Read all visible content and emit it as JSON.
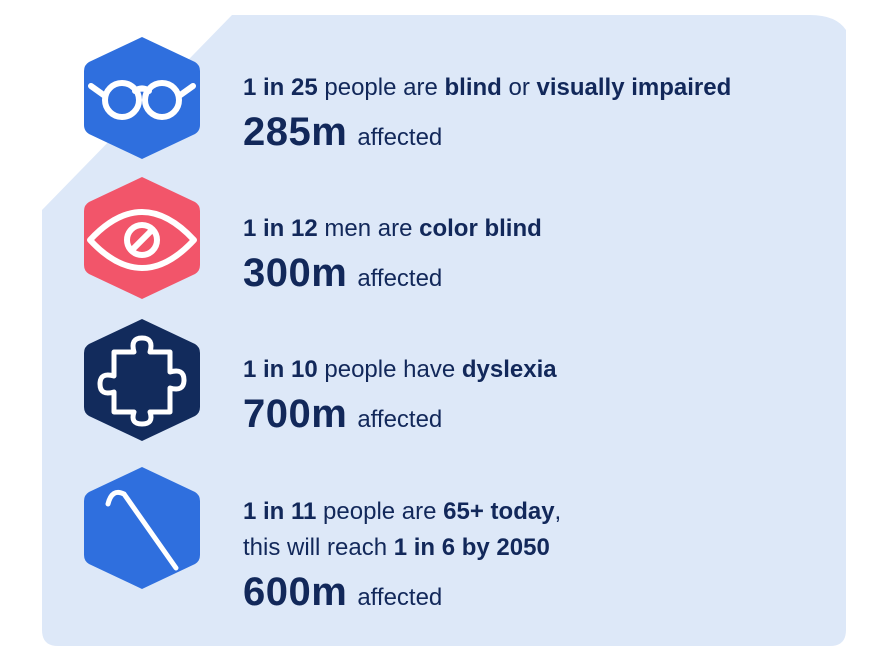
{
  "colors": {
    "background": "#dde8f8",
    "text": "#12285a",
    "blue": "#2f6fde",
    "red": "#f2556a",
    "navy": "#122b5c",
    "icon_stroke": "#ffffff"
  },
  "stats": [
    {
      "icon": "glasses-icon",
      "line1": [
        {
          "t": "1 in 25",
          "b": true
        },
        {
          "t": " people are ",
          "b": false
        },
        {
          "t": "blind",
          "b": true
        },
        {
          "t": " or ",
          "b": false
        },
        {
          "t": "visually impaired",
          "b": true
        }
      ],
      "line2": [],
      "number": "285m",
      "affected": "affected"
    },
    {
      "icon": "eye-blocked-icon",
      "line1": [
        {
          "t": "1 in 12",
          "b": true
        },
        {
          "t": " men are ",
          "b": false
        },
        {
          "t": "color blind",
          "b": true
        }
      ],
      "line2": [],
      "number": "300m",
      "affected": "affected"
    },
    {
      "icon": "puzzle-piece-icon",
      "line1": [
        {
          "t": "1 in 10",
          "b": true
        },
        {
          "t": " people have ",
          "b": false
        },
        {
          "t": "dyslexia",
          "b": true
        }
      ],
      "line2": [],
      "number": "700m",
      "affected": "affected"
    },
    {
      "icon": "walking-cane-icon",
      "line1": [
        {
          "t": "1 in 11",
          "b": true
        },
        {
          "t": " people are ",
          "b": false
        },
        {
          "t": "65+ today",
          "b": true
        },
        {
          "t": ",",
          "b": false
        }
      ],
      "line2": [
        {
          "t": "this will reach ",
          "b": false
        },
        {
          "t": "1 in 6 by 2050",
          "b": true
        }
      ],
      "number": "600m",
      "affected": "affected"
    }
  ]
}
